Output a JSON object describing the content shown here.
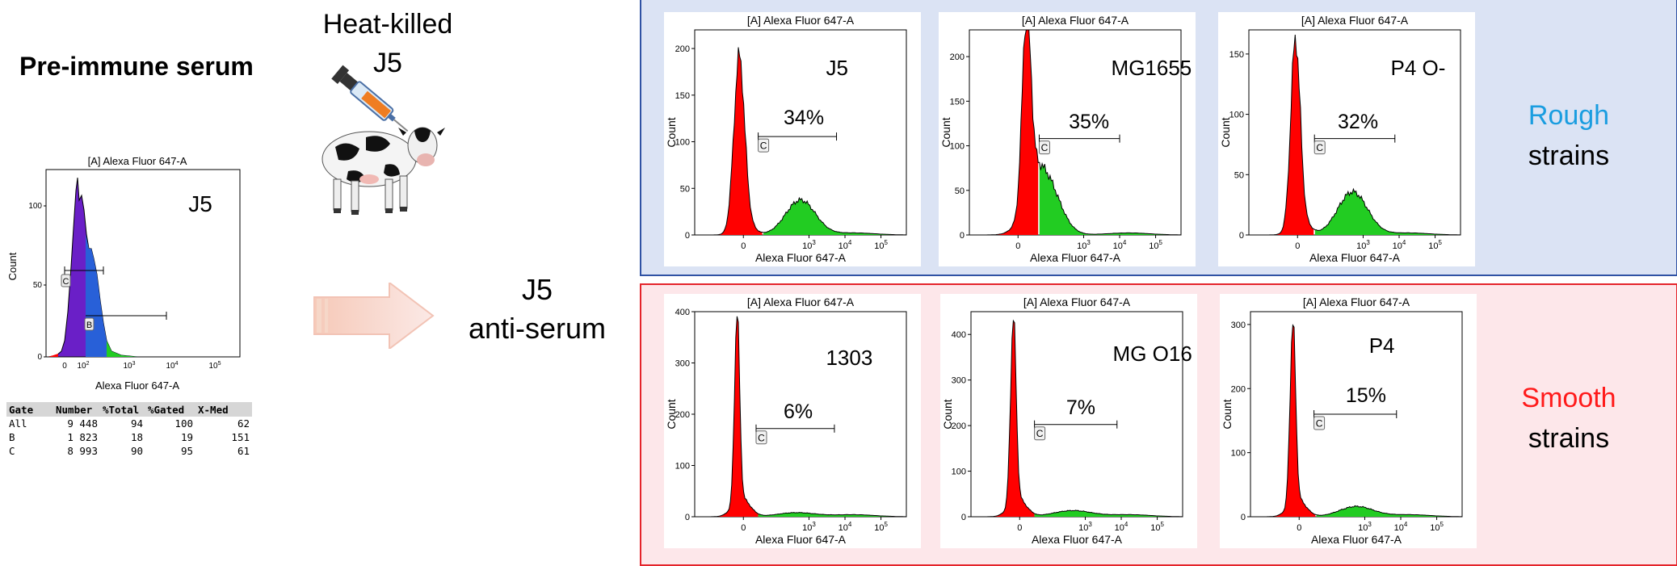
{
  "left": {
    "title": "Pre-immune serum",
    "plot": {
      "title": "[A] Alexa Fluor 647-A",
      "xlabel": "Alexa Fluor 647-A",
      "ylabel": "Count",
      "sample": "J5",
      "yticks": [
        "0",
        "50",
        "100"
      ],
      "gate_c": "C",
      "gate_b": "B"
    },
    "table": {
      "headers": [
        "Gate",
        "Number",
        "%Total",
        "%Gated",
        "X-Med"
      ],
      "rows": [
        [
          "All",
          "9 448",
          "94",
          "100",
          "62"
        ],
        [
          "B",
          "1 823",
          "18",
          "19",
          "151"
        ],
        [
          "C",
          "8 993",
          "90",
          "95",
          "61"
        ]
      ]
    }
  },
  "immunization": {
    "line1": "Heat-killed",
    "line2": "J5"
  },
  "antiserum": {
    "line1": "J5",
    "line2": "anti-serum"
  },
  "rough": {
    "label_line1": "Rough",
    "label_line2": "strains",
    "color": "#1a9de0"
  },
  "smooth": {
    "label_line1": "Smooth",
    "label_line2": "strains",
    "color": "#ff1a1a"
  },
  "colors": {
    "negative": "#ff0000",
    "positive": "#22cc22",
    "preimmune_main": "#6a1fc7",
    "preimmune_b": "#2860d8",
    "rough_border": "#2f52a4",
    "smooth_border": "#e4242b"
  },
  "chart_data": [
    {
      "type": "histogram",
      "panel": "rough",
      "title": "[A] Alexa Fluor 647-A",
      "sample": "J5",
      "percent": "34%",
      "gate": "C",
      "xlabel": "Alexa Fluor 647-A",
      "ylabel": "Count",
      "ylim": [
        0,
        220
      ],
      "yticks": [
        "0",
        "50",
        "100",
        "150",
        "200"
      ],
      "positive_fraction": 0.34
    },
    {
      "type": "histogram",
      "panel": "rough",
      "title": "[A] Alexa Fluor 647-A",
      "sample": "MG1655",
      "percent": "35%",
      "gate": "C",
      "xlabel": "Alexa Fluor 647-A",
      "ylabel": "Count",
      "ylim": [
        0,
        230
      ],
      "yticks": [
        "0",
        "50",
        "100",
        "150",
        "200"
      ],
      "positive_fraction": 0.35
    },
    {
      "type": "histogram",
      "panel": "rough",
      "title": "[A] Alexa Fluor 647-A",
      "sample": "P4 O-",
      "percent": "32%",
      "gate": "C",
      "xlabel": "Alexa Fluor 647-A",
      "ylabel": "Count",
      "ylim": [
        0,
        170
      ],
      "yticks": [
        "0",
        "50",
        "100",
        "150"
      ],
      "positive_fraction": 0.32
    },
    {
      "type": "histogram",
      "panel": "smooth",
      "title": "[A] Alexa Fluor 647-A",
      "sample": "1303",
      "percent": "6%",
      "gate": "C",
      "xlabel": "Alexa Fluor 647-A",
      "ylabel": "Count",
      "ylim": [
        0,
        400
      ],
      "yticks": [
        "0",
        "100",
        "200",
        "300",
        "400"
      ],
      "positive_fraction": 0.06
    },
    {
      "type": "histogram",
      "panel": "smooth",
      "title": "[A] Alexa Fluor 647-A",
      "sample": "MG O16",
      "percent": "7%",
      "gate": "C",
      "xlabel": "Alexa Fluor 647-A",
      "ylabel": "Count",
      "ylim": [
        0,
        450
      ],
      "yticks": [
        "0",
        "100",
        "200",
        "300",
        "400"
      ],
      "positive_fraction": 0.07
    },
    {
      "type": "histogram",
      "panel": "smooth",
      "title": "[A] Alexa Fluor 647-A",
      "sample": "P4",
      "percent": "15%",
      "gate": "C",
      "xlabel": "Alexa Fluor 647-A",
      "ylabel": "Count",
      "ylim": [
        0,
        320
      ],
      "yticks": [
        "0",
        "100",
        "200",
        "300"
      ],
      "positive_fraction": 0.15
    }
  ],
  "xticks": [
    "0",
    "10",
    "10",
    "10",
    "10"
  ],
  "xtick_exponents": [
    "",
    "3",
    "3",
    "4",
    "5"
  ]
}
